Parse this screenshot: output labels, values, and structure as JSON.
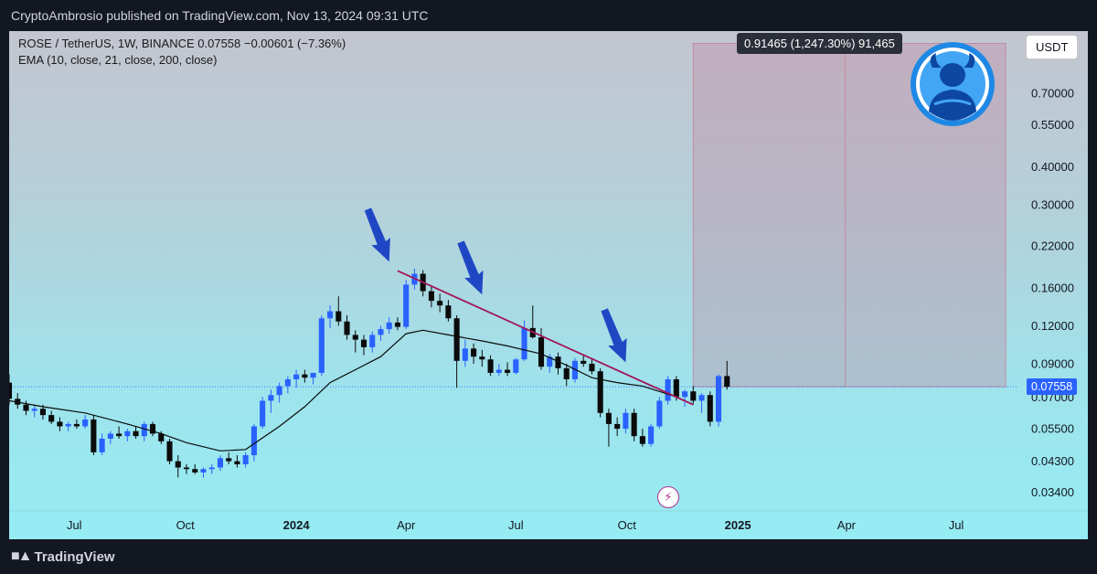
{
  "header": {
    "publisher_line": "CryptoAmbrosio published on TradingView.com, Nov 13, 2024 09:31 UTC"
  },
  "footer": {
    "brand": "TradingView"
  },
  "legend": {
    "symbol_line": "ROSE / TetherUS, 1W, BINANCE  0.07558  −0.00601 (−7.36%)",
    "ema_line": "EMA (10, close, 21, close, 200, close)"
  },
  "currency_button": "USDT",
  "target_tooltip": "0.91465 (1,247.30%) 91,465",
  "last_price_label": "0.07558",
  "icons": {
    "brand": "tradingview-logo-icon",
    "event": "lightning-bolt-icon",
    "avatar": "bull-avatar-icon",
    "annotation": "down-arrow-icon"
  },
  "colors": {
    "bull": "#2962ff",
    "bear": "#0b0b0b",
    "ema": "#0b0b0b",
    "trendline": "#a2185b",
    "arrow": "#1f47c4",
    "target_box": "#c08ca2",
    "last_price": "#2962ff"
  },
  "chart_data": {
    "type": "candlestick",
    "scale": "log",
    "ylim": [
      0.0295,
      1.12
    ],
    "y_ticks": [
      "0.70000",
      "0.55000",
      "0.40000",
      "0.30000",
      "0.22000",
      "0.16000",
      "0.12000",
      "0.09000",
      "0.07000",
      "0.05500",
      "0.04300",
      "0.03400"
    ],
    "y_tick_values": [
      0.7,
      0.55,
      0.4,
      0.3,
      0.22,
      0.16,
      0.12,
      0.09,
      0.07,
      0.055,
      0.043,
      0.034
    ],
    "x_range": [
      "2023-05-08",
      "2025-08-20"
    ],
    "x_ticks": [
      {
        "label": "Jul",
        "date": "2023-07-01",
        "bold": false
      },
      {
        "label": "Oct",
        "date": "2023-10-01",
        "bold": false
      },
      {
        "label": "2024",
        "date": "2024-01-01",
        "bold": true
      },
      {
        "label": "Apr",
        "date": "2024-04-01",
        "bold": false
      },
      {
        "label": "Jul",
        "date": "2024-07-01",
        "bold": false
      },
      {
        "label": "Oct",
        "date": "2024-10-01",
        "bold": false
      },
      {
        "label": "2025",
        "date": "2025-01-01",
        "bold": true
      },
      {
        "label": "Apr",
        "date": "2025-04-01",
        "bold": false
      },
      {
        "label": "Jul",
        "date": "2025-07-01",
        "bold": false
      }
    ],
    "candles_start": "2023-05-08",
    "candle_interval": "1W",
    "candles": [
      [
        0.078,
        0.083,
        0.066,
        0.069
      ],
      [
        0.069,
        0.072,
        0.064,
        0.066
      ],
      [
        0.066,
        0.068,
        0.061,
        0.063
      ],
      [
        0.063,
        0.066,
        0.06,
        0.064
      ],
      [
        0.064,
        0.066,
        0.059,
        0.061
      ],
      [
        0.061,
        0.063,
        0.057,
        0.058
      ],
      [
        0.058,
        0.06,
        0.054,
        0.056
      ],
      [
        0.056,
        0.058,
        0.054,
        0.057
      ],
      [
        0.057,
        0.059,
        0.055,
        0.056
      ],
      [
        0.056,
        0.061,
        0.055,
        0.059
      ],
      [
        0.059,
        0.061,
        0.045,
        0.046
      ],
      [
        0.046,
        0.053,
        0.045,
        0.051
      ],
      [
        0.051,
        0.054,
        0.049,
        0.053
      ],
      [
        0.053,
        0.056,
        0.051,
        0.052
      ],
      [
        0.052,
        0.055,
        0.05,
        0.054
      ],
      [
        0.054,
        0.056,
        0.051,
        0.052
      ],
      [
        0.052,
        0.058,
        0.05,
        0.057
      ],
      [
        0.057,
        0.058,
        0.052,
        0.053
      ],
      [
        0.053,
        0.054,
        0.049,
        0.05
      ],
      [
        0.05,
        0.051,
        0.042,
        0.043
      ],
      [
        0.043,
        0.045,
        0.038,
        0.041
      ],
      [
        0.041,
        0.042,
        0.039,
        0.0405
      ],
      [
        0.0405,
        0.042,
        0.039,
        0.0395
      ],
      [
        0.0395,
        0.041,
        0.038,
        0.0405
      ],
      [
        0.0405,
        0.042,
        0.039,
        0.041
      ],
      [
        0.041,
        0.045,
        0.04,
        0.044
      ],
      [
        0.044,
        0.046,
        0.042,
        0.043
      ],
      [
        0.043,
        0.045,
        0.041,
        0.042
      ],
      [
        0.042,
        0.046,
        0.041,
        0.045
      ],
      [
        0.045,
        0.057,
        0.043,
        0.056
      ],
      [
        0.056,
        0.07,
        0.055,
        0.068
      ],
      [
        0.068,
        0.074,
        0.062,
        0.071
      ],
      [
        0.071,
        0.078,
        0.067,
        0.076
      ],
      [
        0.076,
        0.082,
        0.072,
        0.08
      ],
      [
        0.08,
        0.086,
        0.075,
        0.083
      ],
      [
        0.083,
        0.086,
        0.078,
        0.081
      ],
      [
        0.081,
        0.084,
        0.077,
        0.084
      ],
      [
        0.084,
        0.13,
        0.082,
        0.127
      ],
      [
        0.127,
        0.14,
        0.118,
        0.134
      ],
      [
        0.134,
        0.15,
        0.12,
        0.124
      ],
      [
        0.124,
        0.13,
        0.108,
        0.112
      ],
      [
        0.112,
        0.116,
        0.098,
        0.108
      ],
      [
        0.108,
        0.112,
        0.096,
        0.102
      ],
      [
        0.102,
        0.115,
        0.098,
        0.112
      ],
      [
        0.112,
        0.12,
        0.107,
        0.117
      ],
      [
        0.117,
        0.128,
        0.113,
        0.123
      ],
      [
        0.123,
        0.128,
        0.116,
        0.119
      ],
      [
        0.119,
        0.17,
        0.117,
        0.164
      ],
      [
        0.164,
        0.185,
        0.158,
        0.178
      ],
      [
        0.178,
        0.183,
        0.15,
        0.156
      ],
      [
        0.156,
        0.163,
        0.138,
        0.145
      ],
      [
        0.145,
        0.153,
        0.133,
        0.14
      ],
      [
        0.14,
        0.146,
        0.124,
        0.127
      ],
      [
        0.127,
        0.13,
        0.075,
        0.092
      ],
      [
        0.092,
        0.108,
        0.088,
        0.101
      ],
      [
        0.101,
        0.105,
        0.09,
        0.095
      ],
      [
        0.095,
        0.1,
        0.088,
        0.093
      ],
      [
        0.093,
        0.096,
        0.082,
        0.084
      ],
      [
        0.084,
        0.09,
        0.082,
        0.086
      ],
      [
        0.086,
        0.091,
        0.082,
        0.084
      ],
      [
        0.084,
        0.094,
        0.083,
        0.093
      ],
      [
        0.093,
        0.125,
        0.092,
        0.118
      ],
      [
        0.118,
        0.14,
        0.109,
        0.11
      ],
      [
        0.11,
        0.118,
        0.086,
        0.088
      ],
      [
        0.088,
        0.097,
        0.084,
        0.095
      ],
      [
        0.095,
        0.098,
        0.083,
        0.087
      ],
      [
        0.087,
        0.09,
        0.076,
        0.08
      ],
      [
        0.08,
        0.094,
        0.078,
        0.092
      ],
      [
        0.092,
        0.096,
        0.088,
        0.09
      ],
      [
        0.09,
        0.093,
        0.083,
        0.085
      ],
      [
        0.085,
        0.087,
        0.06,
        0.062
      ],
      [
        0.062,
        0.064,
        0.048,
        0.057
      ],
      [
        0.057,
        0.06,
        0.052,
        0.055
      ],
      [
        0.055,
        0.064,
        0.053,
        0.062
      ],
      [
        0.062,
        0.064,
        0.05,
        0.052
      ],
      [
        0.052,
        0.055,
        0.048,
        0.049
      ],
      [
        0.049,
        0.057,
        0.048,
        0.056
      ],
      [
        0.056,
        0.07,
        0.055,
        0.068
      ],
      [
        0.068,
        0.082,
        0.066,
        0.08
      ],
      [
        0.08,
        0.082,
        0.068,
        0.07
      ],
      [
        0.07,
        0.074,
        0.065,
        0.073
      ],
      [
        0.073,
        0.076,
        0.066,
        0.068
      ],
      [
        0.068,
        0.072,
        0.062,
        0.071
      ],
      [
        0.071,
        0.073,
        0.056,
        0.058
      ],
      [
        0.058,
        0.083,
        0.056,
        0.082
      ],
      [
        0.082,
        0.092,
        0.074,
        0.0756
      ]
    ],
    "ema": [
      [
        "2023-05-08",
        0.068
      ],
      [
        "2023-06-05",
        0.065
      ],
      [
        "2023-07-10",
        0.062
      ],
      [
        "2023-08-14",
        0.057
      ],
      [
        "2023-09-11",
        0.053
      ],
      [
        "2023-10-02",
        0.0495
      ],
      [
        "2023-10-30",
        0.0465
      ],
      [
        "2023-11-20",
        0.047
      ],
      [
        "2023-12-18",
        0.056
      ],
      [
        "2024-01-08",
        0.065
      ],
      [
        "2024-01-29",
        0.078
      ],
      [
        "2024-02-19",
        0.086
      ],
      [
        "2024-03-11",
        0.095
      ],
      [
        "2024-04-01",
        0.113
      ],
      [
        "2024-04-15",
        0.116
      ],
      [
        "2024-05-06",
        0.112
      ],
      [
        "2024-06-03",
        0.107
      ],
      [
        "2024-06-24",
        0.103
      ],
      [
        "2024-07-22",
        0.097
      ],
      [
        "2024-08-12",
        0.089
      ],
      [
        "2024-09-02",
        0.081
      ],
      [
        "2024-09-23",
        0.078
      ],
      [
        "2024-10-14",
        0.076
      ],
      [
        "2024-11-04",
        0.0715
      ],
      [
        "2024-11-11",
        0.07
      ]
    ],
    "trendline": [
      [
        "2024-03-25",
        0.182
      ],
      [
        "2024-11-25",
        0.066
      ]
    ],
    "target_box": {
      "x": [
        "2024-11-25",
        "2025-08-11"
      ],
      "y": [
        0.0756,
        1.02
      ],
      "mid": "2025-03-31"
    },
    "last_price": 0.07558,
    "annotations": [
      {
        "type": "down-arrow",
        "date": "2024-03-18",
        "price": 0.195
      },
      {
        "type": "down-arrow",
        "date": "2024-06-03",
        "price": 0.152
      },
      {
        "type": "down-arrow",
        "date": "2024-09-30",
        "price": 0.091
      }
    ]
  }
}
